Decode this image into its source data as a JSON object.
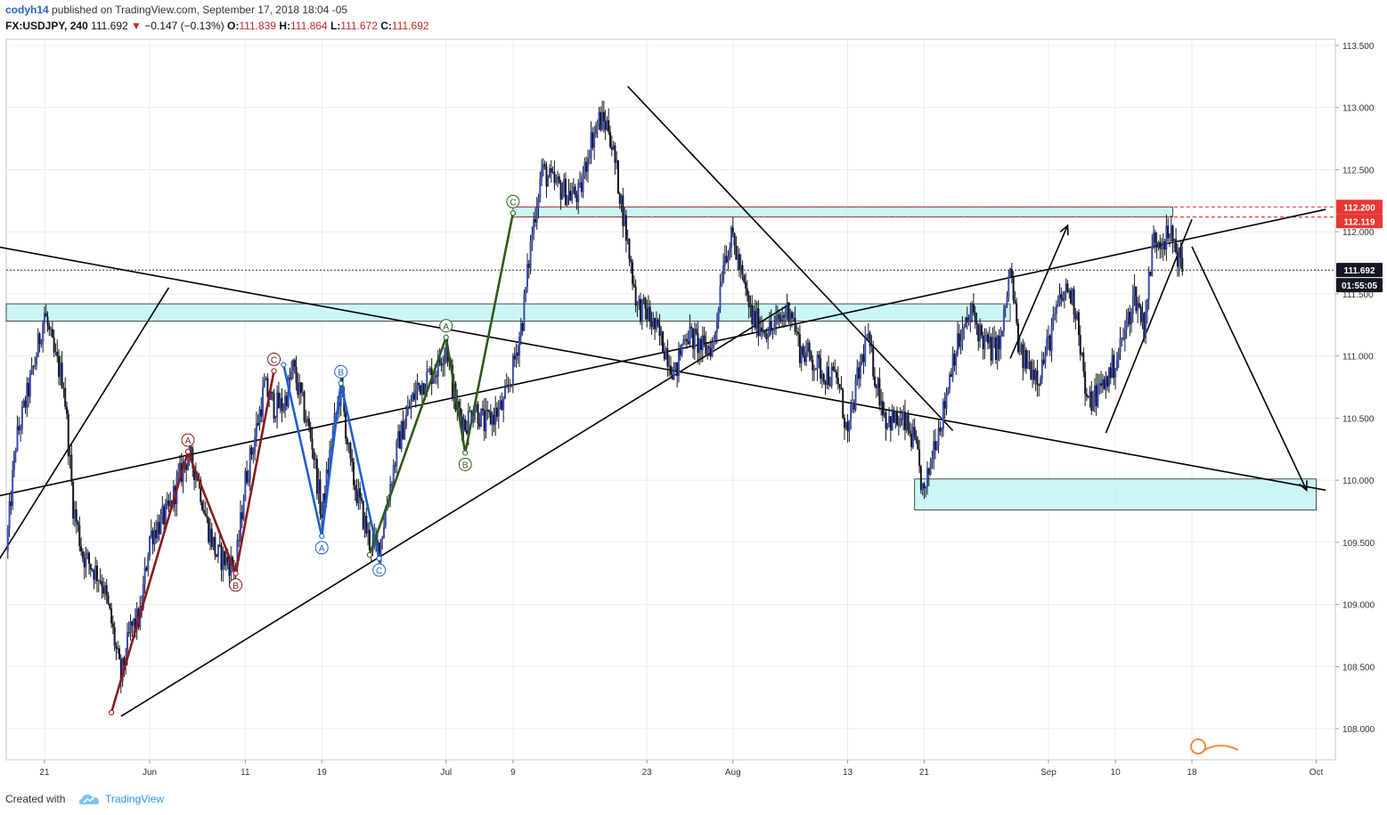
{
  "header": {
    "author": "codyh14",
    "published_text": "published on TradingView.com, September 17, 2018 18:04 -05",
    "symbol": "FX:USDJPY",
    "interval": "240",
    "last": "111.692",
    "change_text": "−0.147 (−0.13%)",
    "open_label": "O:",
    "open": "111.839",
    "high_label": "H:",
    "high": "111.864",
    "low_label": "L:",
    "low": "111.672",
    "close_label": "C:",
    "close": "111.692"
  },
  "footer": {
    "created_with": "Created with",
    "brand": "TradingView"
  },
  "chart_data": {
    "type": "candlestick",
    "symbol": "FX:USDJPY",
    "interval": "240",
    "y_axis": {
      "range": [
        107.75,
        113.55
      ],
      "ticks": [
        108.0,
        108.5,
        109.0,
        109.5,
        110.0,
        110.5,
        111.0,
        111.5,
        112.0,
        112.5,
        113.0,
        113.5
      ],
      "tick_labels": [
        "108.000",
        "108.500",
        "109.000",
        "109.500",
        "110.000",
        "110.500",
        "111.000",
        "111.500",
        "112.000",
        "112.500",
        "113.000",
        "113.500"
      ]
    },
    "x_axis": {
      "tick_labels": [
        "21",
        "Jun",
        "11",
        "19",
        "Jul",
        "9",
        "23",
        "Aug",
        "13",
        "21",
        "Sep",
        "10",
        "18",
        "Oct"
      ],
      "range": [
        "2018-05-17",
        "2018-10-03"
      ]
    },
    "price_labels": [
      {
        "value": 112.2,
        "text": "112.200",
        "color": "#e53935"
      },
      {
        "value": 112.119,
        "text": "112.119",
        "color": "#e53935"
      },
      {
        "value": 111.692,
        "text": "111.692",
        "color": "#131722"
      }
    ],
    "countdown": "01:55:05",
    "current_price": 111.692,
    "price_path": [
      [
        "2018-05-17",
        109.43
      ],
      [
        "2018-05-18",
        110.3
      ],
      [
        "2018-05-20",
        110.95
      ],
      [
        "2018-05-21",
        111.35
      ],
      [
        "2018-05-22",
        111.0
      ],
      [
        "2018-05-23",
        110.8
      ],
      [
        "2018-05-24",
        109.8
      ],
      [
        "2018-05-25",
        109.4
      ],
      [
        "2018-05-27",
        109.2
      ],
      [
        "2018-05-28",
        108.85
      ],
      [
        "2018-05-29",
        108.4
      ],
      [
        "2018-05-30",
        108.8
      ],
      [
        "2018-05-31",
        108.9
      ],
      [
        "2018-06-01",
        109.55
      ],
      [
        "2018-06-03",
        109.75
      ],
      [
        "2018-06-04",
        110.0
      ],
      [
        "2018-06-05",
        110.2
      ],
      [
        "2018-06-06",
        110.05
      ],
      [
        "2018-06-07",
        109.65
      ],
      [
        "2018-06-08",
        109.4
      ],
      [
        "2018-06-10",
        109.3
      ],
      [
        "2018-06-11",
        110.0
      ],
      [
        "2018-06-12",
        110.35
      ],
      [
        "2018-06-13",
        110.75
      ],
      [
        "2018-06-14",
        110.6
      ],
      [
        "2018-06-15",
        110.6
      ],
      [
        "2018-06-16",
        110.9
      ],
      [
        "2018-06-17",
        110.6
      ],
      [
        "2018-06-18",
        110.3
      ],
      [
        "2018-06-19",
        109.7
      ],
      [
        "2018-06-20",
        110.3
      ],
      [
        "2018-06-21",
        110.75
      ],
      [
        "2018-06-22",
        110.1
      ],
      [
        "2018-06-24",
        109.5
      ],
      [
        "2018-06-25",
        109.45
      ],
      [
        "2018-06-26",
        109.9
      ],
      [
        "2018-06-27",
        110.3
      ],
      [
        "2018-06-28",
        110.55
      ],
      [
        "2018-06-29",
        110.75
      ],
      [
        "2018-07-01",
        110.9
      ],
      [
        "2018-07-02",
        111.1
      ],
      [
        "2018-07-03",
        110.6
      ],
      [
        "2018-07-04",
        110.45
      ],
      [
        "2018-07-05",
        110.6
      ],
      [
        "2018-07-06",
        110.45
      ],
      [
        "2018-07-08",
        110.6
      ],
      [
        "2018-07-09",
        110.9
      ],
      [
        "2018-07-10",
        111.3
      ],
      [
        "2018-07-11",
        112.0
      ],
      [
        "2018-07-12",
        112.5
      ],
      [
        "2018-07-13",
        112.4
      ],
      [
        "2018-07-15",
        112.3
      ],
      [
        "2018-07-16",
        112.3
      ],
      [
        "2018-07-17",
        112.7
      ],
      [
        "2018-07-18",
        112.9
      ],
      [
        "2018-07-19",
        112.85
      ],
      [
        "2018-07-20",
        112.4
      ],
      [
        "2018-07-22",
        111.4
      ],
      [
        "2018-07-23",
        111.35
      ],
      [
        "2018-07-24",
        111.2
      ],
      [
        "2018-07-25",
        111.05
      ],
      [
        "2018-07-26",
        110.85
      ],
      [
        "2018-07-27",
        111.2
      ],
      [
        "2018-07-29",
        111.05
      ],
      [
        "2018-07-30",
        111.1
      ],
      [
        "2018-07-31",
        111.8
      ],
      [
        "2018-08-01",
        111.95
      ],
      [
        "2018-08-02",
        111.6
      ],
      [
        "2018-08-03",
        111.3
      ],
      [
        "2018-08-05",
        111.2
      ],
      [
        "2018-08-06",
        111.3
      ],
      [
        "2018-08-07",
        111.4
      ],
      [
        "2018-08-08",
        111.05
      ],
      [
        "2018-08-09",
        111.0
      ],
      [
        "2018-08-10",
        110.9
      ],
      [
        "2018-08-12",
        110.8
      ],
      [
        "2018-08-13",
        110.35
      ],
      [
        "2018-08-14",
        110.8
      ],
      [
        "2018-08-15",
        111.15
      ],
      [
        "2018-08-16",
        110.8
      ],
      [
        "2018-08-17",
        110.5
      ],
      [
        "2018-08-19",
        110.45
      ],
      [
        "2018-08-20",
        110.3
      ],
      [
        "2018-08-21",
        109.85
      ],
      [
        "2018-08-22",
        110.3
      ],
      [
        "2018-08-23",
        110.55
      ],
      [
        "2018-08-24",
        111.0
      ],
      [
        "2018-08-26",
        111.35
      ],
      [
        "2018-08-27",
        111.15
      ],
      [
        "2018-08-28",
        111.05
      ],
      [
        "2018-08-29",
        111.1
      ],
      [
        "2018-08-30",
        111.7
      ],
      [
        "2018-08-31",
        111.0
      ],
      [
        "2018-09-02",
        110.85
      ],
      [
        "2018-09-03",
        111.1
      ],
      [
        "2018-09-04",
        111.4
      ],
      [
        "2018-09-05",
        111.55
      ],
      [
        "2018-09-06",
        111.35
      ],
      [
        "2018-09-07",
        110.6
      ],
      [
        "2018-09-09",
        110.8
      ],
      [
        "2018-09-10",
        110.95
      ],
      [
        "2018-09-11",
        111.2
      ],
      [
        "2018-09-12",
        111.5
      ],
      [
        "2018-09-13",
        111.25
      ],
      [
        "2018-09-14",
        111.95
      ],
      [
        "2018-09-16",
        111.95
      ],
      [
        "2018-09-17",
        111.692
      ]
    ],
    "zones": [
      {
        "from": "2018-05-17",
        "to": "2018-08-30",
        "low": 111.28,
        "high": 111.42,
        "color": "#b9f3f6"
      },
      {
        "from": "2018-07-09",
        "to": "2018-09-16",
        "low": 112.12,
        "high": 112.2,
        "color": "#b9f3f6"
      },
      {
        "from": "2018-08-20",
        "to": "2018-10-01",
        "low": 109.76,
        "high": 110.01,
        "color": "#b9f3f6"
      }
    ],
    "dashed_levels": [
      {
        "value": 112.2,
        "from": "2018-07-09",
        "color": "#e53935"
      },
      {
        "value": 112.119,
        "from": "2018-07-09",
        "color": "#e53935"
      },
      {
        "value": 111.692,
        "from": "2018-05-17",
        "color": "#131722"
      }
    ],
    "trend_lines": [
      {
        "from": [
          "2018-05-16",
          109.33
        ],
        "to": [
          "2018-06-03",
          111.55
        ]
      },
      {
        "from": [
          "2018-05-16",
          111.88
        ],
        "to": [
          "2018-10-02",
          109.92
        ]
      },
      {
        "from": [
          "2018-05-16",
          109.87
        ],
        "to": [
          "2018-10-02",
          112.18
        ]
      },
      {
        "from": [
          "2018-05-29",
          108.1
        ],
        "to": [
          "2018-08-07",
          111.42
        ]
      },
      {
        "from": [
          "2018-07-21",
          113.17
        ],
        "to": [
          "2018-08-24",
          110.4
        ]
      },
      {
        "from": [
          "2018-09-09",
          110.38
        ],
        "to": [
          "2018-09-18",
          112.1
        ]
      }
    ],
    "arrows": [
      {
        "from": [
          "2018-08-30",
          110.98
        ],
        "to": [
          "2018-09-05",
          112.05
        ]
      },
      {
        "from": [
          "2018-09-18",
          111.88
        ],
        "to": [
          "2018-09-30",
          109.92
        ]
      }
    ],
    "wave_patterns": [
      {
        "color": "#8b1a1a",
        "points": [
          [
            "2018-05-28",
            108.13
          ],
          [
            "2018-06-05",
            110.23
          ],
          [
            "2018-06-10",
            109.25
          ],
          [
            "2018-06-14",
            110.88
          ]
        ],
        "labels": [
          "A",
          "B",
          "C"
        ]
      },
      {
        "color": "#1e5fd0",
        "points": [
          [
            "2018-06-15",
            110.93
          ],
          [
            "2018-06-19",
            109.55
          ],
          [
            "2018-06-21",
            110.78
          ],
          [
            "2018-06-25",
            109.37
          ]
        ],
        "labels": [
          "A",
          "B",
          "C"
        ]
      },
      {
        "color": "#2e5a1b",
        "points": [
          [
            "2018-06-24",
            109.4
          ],
          [
            "2018-07-02",
            111.15
          ],
          [
            "2018-07-04",
            110.22
          ],
          [
            "2018-07-09",
            112.15
          ]
        ],
        "labels": [
          "A",
          "B",
          "C"
        ]
      }
    ]
  }
}
